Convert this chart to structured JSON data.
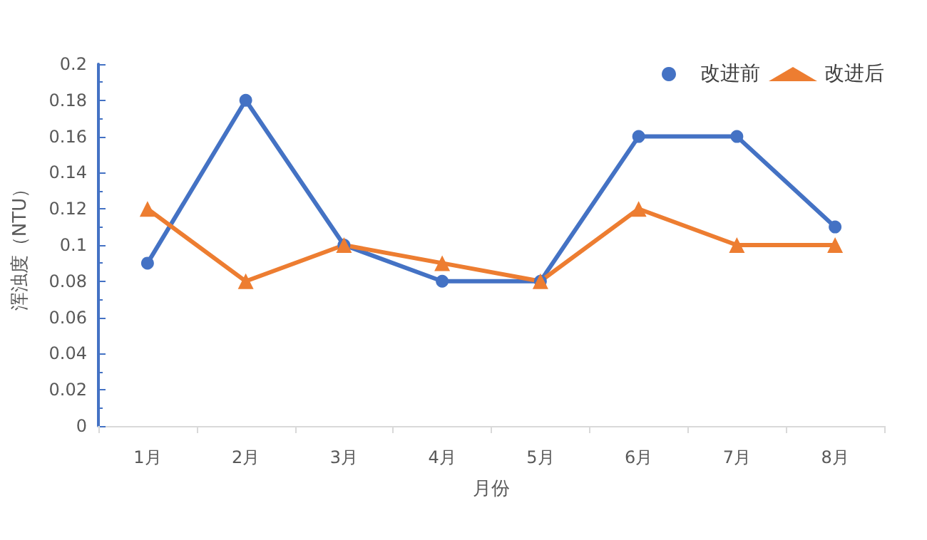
{
  "chart_data": {
    "type": "line",
    "xlabel": "月份",
    "ylabel": "浑浊度（NTU）",
    "categories": [
      "1月",
      "2月",
      "3月",
      "4月",
      "5月",
      "6月",
      "7月",
      "8月"
    ],
    "series": [
      {
        "name": "改进前",
        "color": "#4472c4",
        "marker": "circle",
        "values": [
          0.09,
          0.18,
          0.1,
          0.08,
          0.08,
          0.16,
          0.16,
          0.11
        ]
      },
      {
        "name": "改进后",
        "color": "#ed7d31",
        "marker": "triangle",
        "values": [
          0.12,
          0.08,
          0.1,
          0.09,
          0.08,
          0.12,
          0.1,
          0.1
        ]
      }
    ],
    "ylim": [
      0,
      0.2
    ],
    "yticks": [
      0,
      0.02,
      0.04,
      0.06,
      0.08,
      0.1,
      0.12,
      0.14,
      0.16,
      0.18,
      0.2
    ],
    "grid": false,
    "legend": "top right",
    "line_style": "solid"
  }
}
